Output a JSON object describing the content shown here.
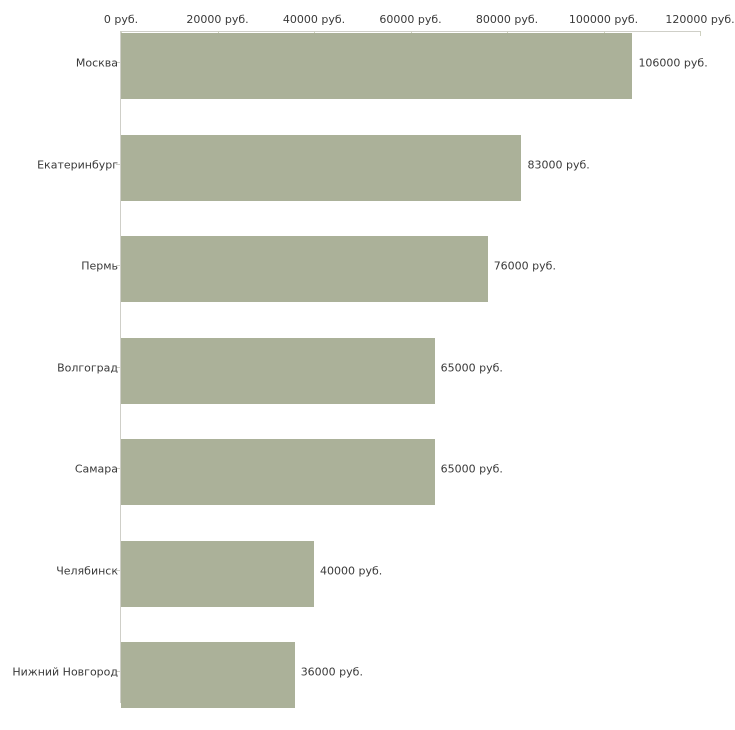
{
  "chart_data": {
    "type": "bar",
    "orientation": "horizontal",
    "title": "",
    "xlabel": "",
    "ylabel": "",
    "unit": "руб.",
    "grid": false,
    "legend": false,
    "categories": [
      "Москва",
      "Екатеринбург",
      "Пермь",
      "Волгоград",
      "Самара",
      "Челябинск",
      "Нижний Новгород"
    ],
    "values": [
      106000,
      83000,
      76000,
      65000,
      65000,
      40000,
      36000
    ],
    "value_labels": [
      "106000 руб.",
      "83000 руб.",
      "76000 руб.",
      "65000 руб.",
      "65000 руб.",
      "40000 руб.",
      "36000 руб."
    ],
    "x_axis": {
      "position": "top",
      "range": [
        0,
        120000
      ],
      "tick_values": [
        0,
        20000,
        40000,
        60000,
        80000,
        100000,
        120000
      ],
      "tick_labels": [
        "0 руб.",
        "20000 руб.",
        "40000 руб.",
        "60000 руб.",
        "80000 руб.",
        "100000 руб.",
        "120000 руб."
      ]
    },
    "colors": {
      "bar_fill": "#abb199",
      "axis_line": "#cfcfc8",
      "tick_mark": "#ced1c0",
      "text": "#3a3a3a",
      "background": "#ffffff"
    }
  }
}
